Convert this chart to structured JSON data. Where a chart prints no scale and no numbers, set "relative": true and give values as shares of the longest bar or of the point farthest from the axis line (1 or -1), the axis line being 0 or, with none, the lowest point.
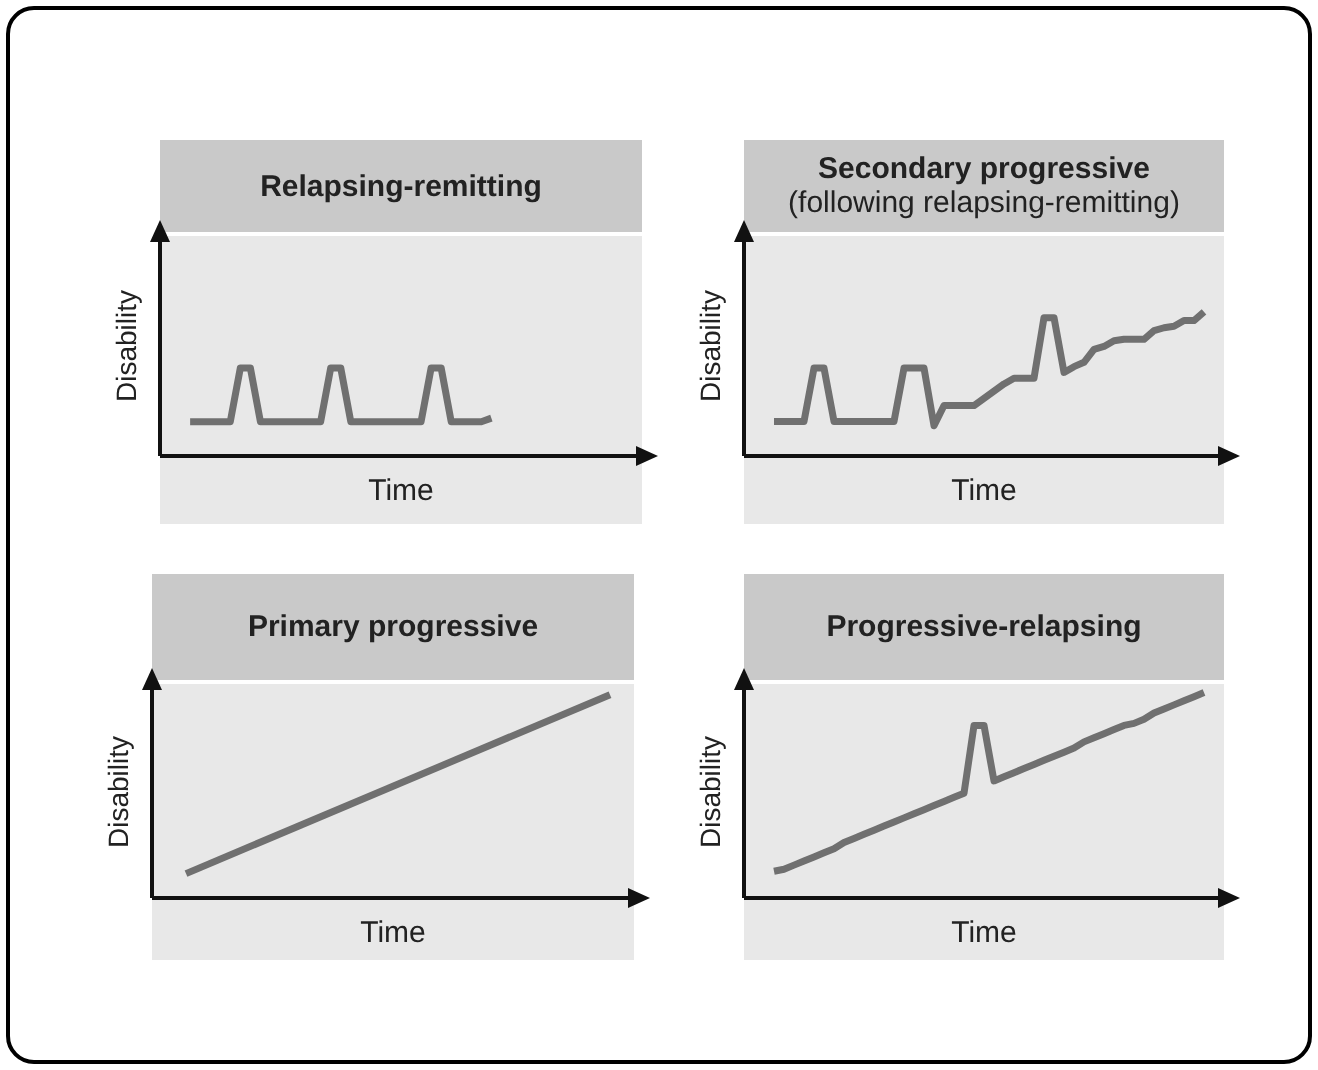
{
  "chart_data": [
    {
      "type": "line",
      "title": "Relapsing-remitting",
      "xlabel": "Time",
      "ylabel": "Disability",
      "relative": true,
      "color": "#707070",
      "categories": [
        null,
        null,
        null,
        null,
        null,
        null,
        null,
        null,
        null,
        null,
        null,
        null,
        null,
        null,
        null,
        null,
        null,
        null,
        null,
        null,
        null,
        null,
        null,
        null,
        null,
        null,
        null,
        null,
        null,
        null,
        null,
        null,
        null,
        null,
        null,
        null,
        null,
        null,
        null,
        null,
        null,
        null,
        null,
        null,
        null,
        null,
        null,
        null,
        null
      ],
      "values": [
        null,
        null,
        null,
        0.39,
        0.39,
        0.39,
        0.39,
        0.39,
        1,
        1,
        0.39,
        0.39,
        0.39,
        0.39,
        0.39,
        0.39,
        0.39,
        1,
        1,
        0.39,
        0.39,
        0.39,
        0.39,
        0.39,
        0.39,
        0.39,
        0.39,
        1,
        1,
        0.39,
        0.39,
        0.39,
        0.39,
        0.43,
        null,
        null,
        null,
        null,
        null,
        null,
        null,
        null,
        null,
        null,
        null,
        null,
        null,
        null,
        null
      ]
    },
    {
      "type": "line",
      "title": "Secondary progressive",
      "subtitle": "(following relapsing-remitting)",
      "xlabel": "Time",
      "ylabel": "Disability",
      "relative": true,
      "color": "#707070",
      "categories": [
        null,
        null,
        null,
        null,
        null,
        null,
        null,
        null,
        null,
        null,
        null,
        null,
        null,
        null,
        null,
        null,
        null,
        null,
        null,
        null,
        null,
        null,
        null,
        null,
        null,
        null,
        null,
        null,
        null,
        null,
        null,
        null,
        null,
        null,
        null,
        null,
        null,
        null,
        null,
        null,
        null,
        null,
        null,
        null,
        null,
        null,
        null,
        null,
        null
      ],
      "values": [
        null,
        null,
        null,
        0.24,
        0.24,
        0.24,
        0.24,
        0.61,
        0.61,
        0.24,
        0.24,
        0.24,
        0.24,
        0.24,
        0.24,
        0.24,
        0.61,
        0.61,
        0.61,
        0.21,
        0.35,
        0.35,
        0.35,
        0.35,
        0.4,
        0.45,
        0.5,
        0.54,
        0.54,
        0.54,
        0.96,
        0.96,
        0.58,
        0.62,
        0.65,
        0.74,
        0.76,
        0.8,
        0.81,
        0.81,
        0.81,
        0.87,
        0.89,
        0.9,
        0.94,
        0.94,
        1,
        null,
        null
      ]
    },
    {
      "type": "line",
      "title": "Primary progressive",
      "xlabel": "Time",
      "ylabel": "Disability",
      "relative": true,
      "color": "#707070",
      "categories": [
        null,
        null
      ],
      "values": [
        0.12,
        1
      ]
    },
    {
      "type": "line",
      "title": "Progressive-relapsing",
      "xlabel": "Time",
      "ylabel": "Disability",
      "relative": true,
      "color": "#707070",
      "categories": [
        null,
        null,
        null,
        null,
        null,
        null,
        null,
        null,
        null,
        null,
        null,
        null,
        null,
        null,
        null,
        null,
        null,
        null,
        null,
        null,
        null,
        null,
        null,
        null,
        null,
        null,
        null,
        null,
        null,
        null,
        null,
        null,
        null,
        null,
        null,
        null,
        null,
        null,
        null,
        null,
        null,
        null,
        null,
        null,
        null,
        null,
        null,
        null,
        null
      ],
      "values": [
        null,
        null,
        null,
        0.13,
        0.14,
        0.16,
        0.18,
        0.2,
        0.22,
        0.24,
        0.27,
        0.29,
        0.31,
        0.33,
        0.35,
        0.37,
        0.39,
        0.41,
        0.43,
        0.45,
        0.47,
        0.49,
        0.51,
        0.84,
        0.84,
        0.57,
        0.59,
        0.61,
        0.63,
        0.65,
        0.67,
        0.69,
        0.71,
        0.73,
        0.76,
        0.78,
        0.8,
        0.82,
        0.84,
        0.85,
        0.87,
        0.9,
        0.92,
        0.94,
        0.96,
        0.98,
        1,
        null,
        null
      ]
    }
  ]
}
